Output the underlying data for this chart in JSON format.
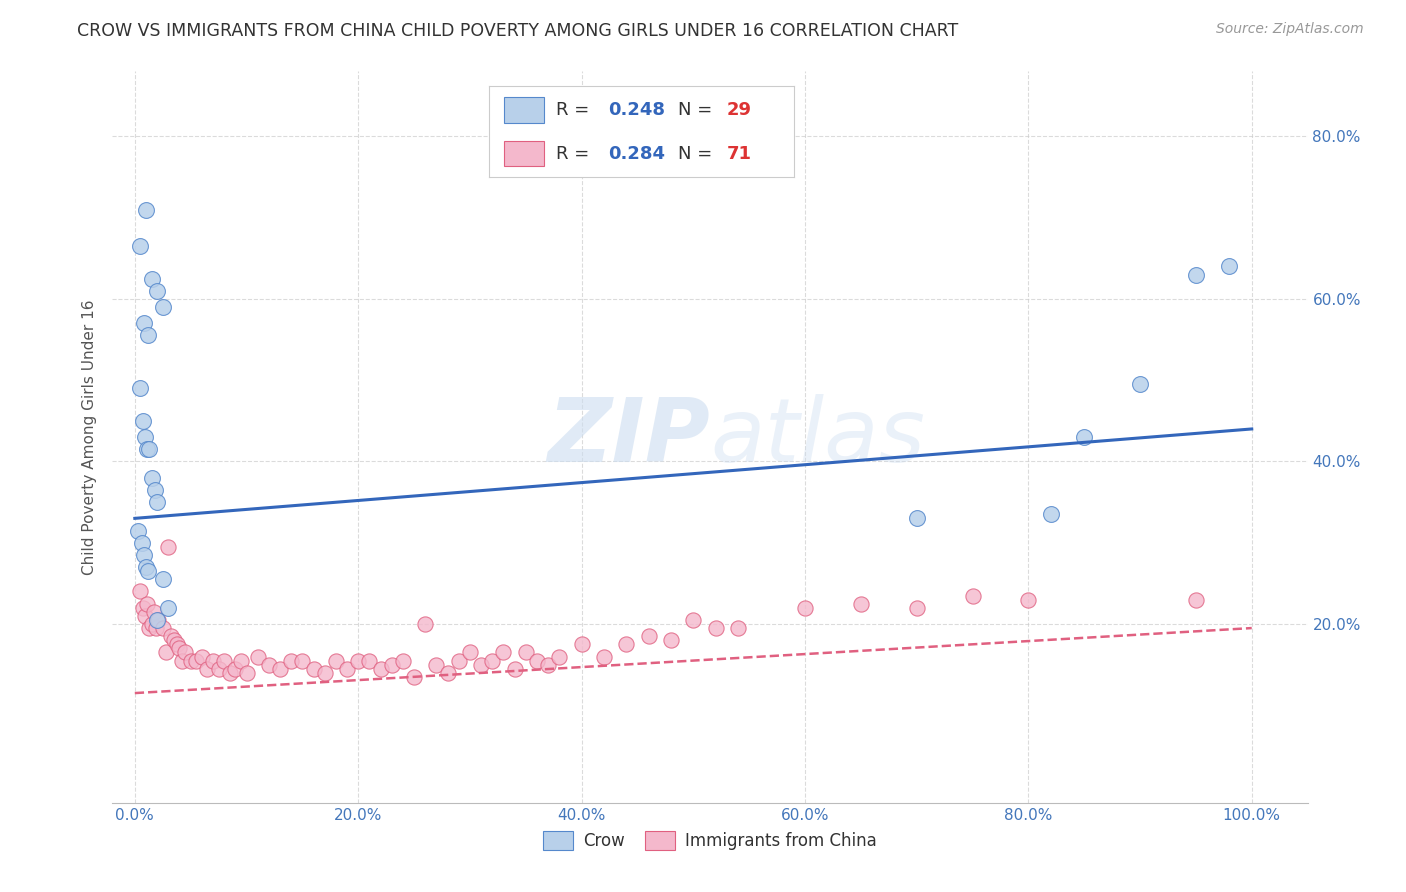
{
  "title": "CROW VS IMMIGRANTS FROM CHINA CHILD POVERTY AMONG GIRLS UNDER 16 CORRELATION CHART",
  "source": "Source: ZipAtlas.com",
  "ylabel": "Child Poverty Among Girls Under 16",
  "xlim": [
    -0.02,
    1.05
  ],
  "ylim": [
    -0.02,
    0.88
  ],
  "xtick_positions": [
    0.0,
    0.2,
    0.4,
    0.6,
    0.8,
    1.0
  ],
  "ytick_positions": [
    0.2,
    0.4,
    0.6,
    0.8
  ],
  "xticklabels": [
    "0.0%",
    "20.0%",
    "40.0%",
    "60.0%",
    "80.0%",
    "100.0%"
  ],
  "yticklabels": [
    "20.0%",
    "40.0%",
    "60.0%",
    "80.0%"
  ],
  "crow_R": "0.248",
  "crow_N": "29",
  "china_R": "0.284",
  "china_N": "71",
  "crow_fill": "#b8d0ea",
  "crow_edge": "#5588cc",
  "china_fill": "#f4b8cc",
  "china_edge": "#e06080",
  "crow_line_color": "#3366bb",
  "china_line_color": "#dd6688",
  "watermark_color": "#ddeeff",
  "background_color": "#ffffff",
  "grid_color": "#cccccc",
  "crow_scatter_x": [
    0.005,
    0.01,
    0.015,
    0.02,
    0.025,
    0.008,
    0.012,
    0.005,
    0.007,
    0.009,
    0.011,
    0.013,
    0.015,
    0.018,
    0.02,
    0.003,
    0.006,
    0.008,
    0.01,
    0.012,
    0.025,
    0.03,
    0.02,
    0.7,
    0.82,
    0.85,
    0.9,
    0.95,
    0.98
  ],
  "crow_scatter_y": [
    0.665,
    0.71,
    0.625,
    0.61,
    0.59,
    0.57,
    0.555,
    0.49,
    0.45,
    0.43,
    0.415,
    0.415,
    0.38,
    0.365,
    0.35,
    0.315,
    0.3,
    0.285,
    0.27,
    0.265,
    0.255,
    0.22,
    0.205,
    0.33,
    0.335,
    0.43,
    0.495,
    0.63,
    0.64
  ],
  "china_scatter_x": [
    0.005,
    0.007,
    0.009,
    0.011,
    0.013,
    0.015,
    0.017,
    0.019,
    0.021,
    0.025,
    0.028,
    0.03,
    0.032,
    0.035,
    0.038,
    0.04,
    0.042,
    0.045,
    0.05,
    0.055,
    0.06,
    0.065,
    0.07,
    0.075,
    0.08,
    0.085,
    0.09,
    0.095,
    0.1,
    0.11,
    0.12,
    0.13,
    0.14,
    0.15,
    0.16,
    0.17,
    0.18,
    0.19,
    0.2,
    0.21,
    0.22,
    0.23,
    0.24,
    0.25,
    0.26,
    0.27,
    0.28,
    0.29,
    0.3,
    0.31,
    0.32,
    0.33,
    0.34,
    0.35,
    0.36,
    0.37,
    0.38,
    0.4,
    0.42,
    0.44,
    0.46,
    0.48,
    0.5,
    0.52,
    0.54,
    0.6,
    0.65,
    0.7,
    0.75,
    0.8,
    0.95
  ],
  "china_scatter_y": [
    0.24,
    0.22,
    0.21,
    0.225,
    0.195,
    0.2,
    0.215,
    0.195,
    0.205,
    0.195,
    0.165,
    0.295,
    0.185,
    0.18,
    0.175,
    0.17,
    0.155,
    0.165,
    0.155,
    0.155,
    0.16,
    0.145,
    0.155,
    0.145,
    0.155,
    0.14,
    0.145,
    0.155,
    0.14,
    0.16,
    0.15,
    0.145,
    0.155,
    0.155,
    0.145,
    0.14,
    0.155,
    0.145,
    0.155,
    0.155,
    0.145,
    0.15,
    0.155,
    0.135,
    0.2,
    0.15,
    0.14,
    0.155,
    0.165,
    0.15,
    0.155,
    0.165,
    0.145,
    0.165,
    0.155,
    0.15,
    0.16,
    0.175,
    0.16,
    0.175,
    0.185,
    0.18,
    0.205,
    0.195,
    0.195,
    0.22,
    0.225,
    0.22,
    0.235,
    0.23,
    0.23
  ],
  "crow_trend_x": [
    0.0,
    1.0
  ],
  "crow_trend_y": [
    0.33,
    0.44
  ],
  "china_trend_x": [
    0.0,
    1.0
  ],
  "china_trend_y": [
    0.115,
    0.195
  ]
}
